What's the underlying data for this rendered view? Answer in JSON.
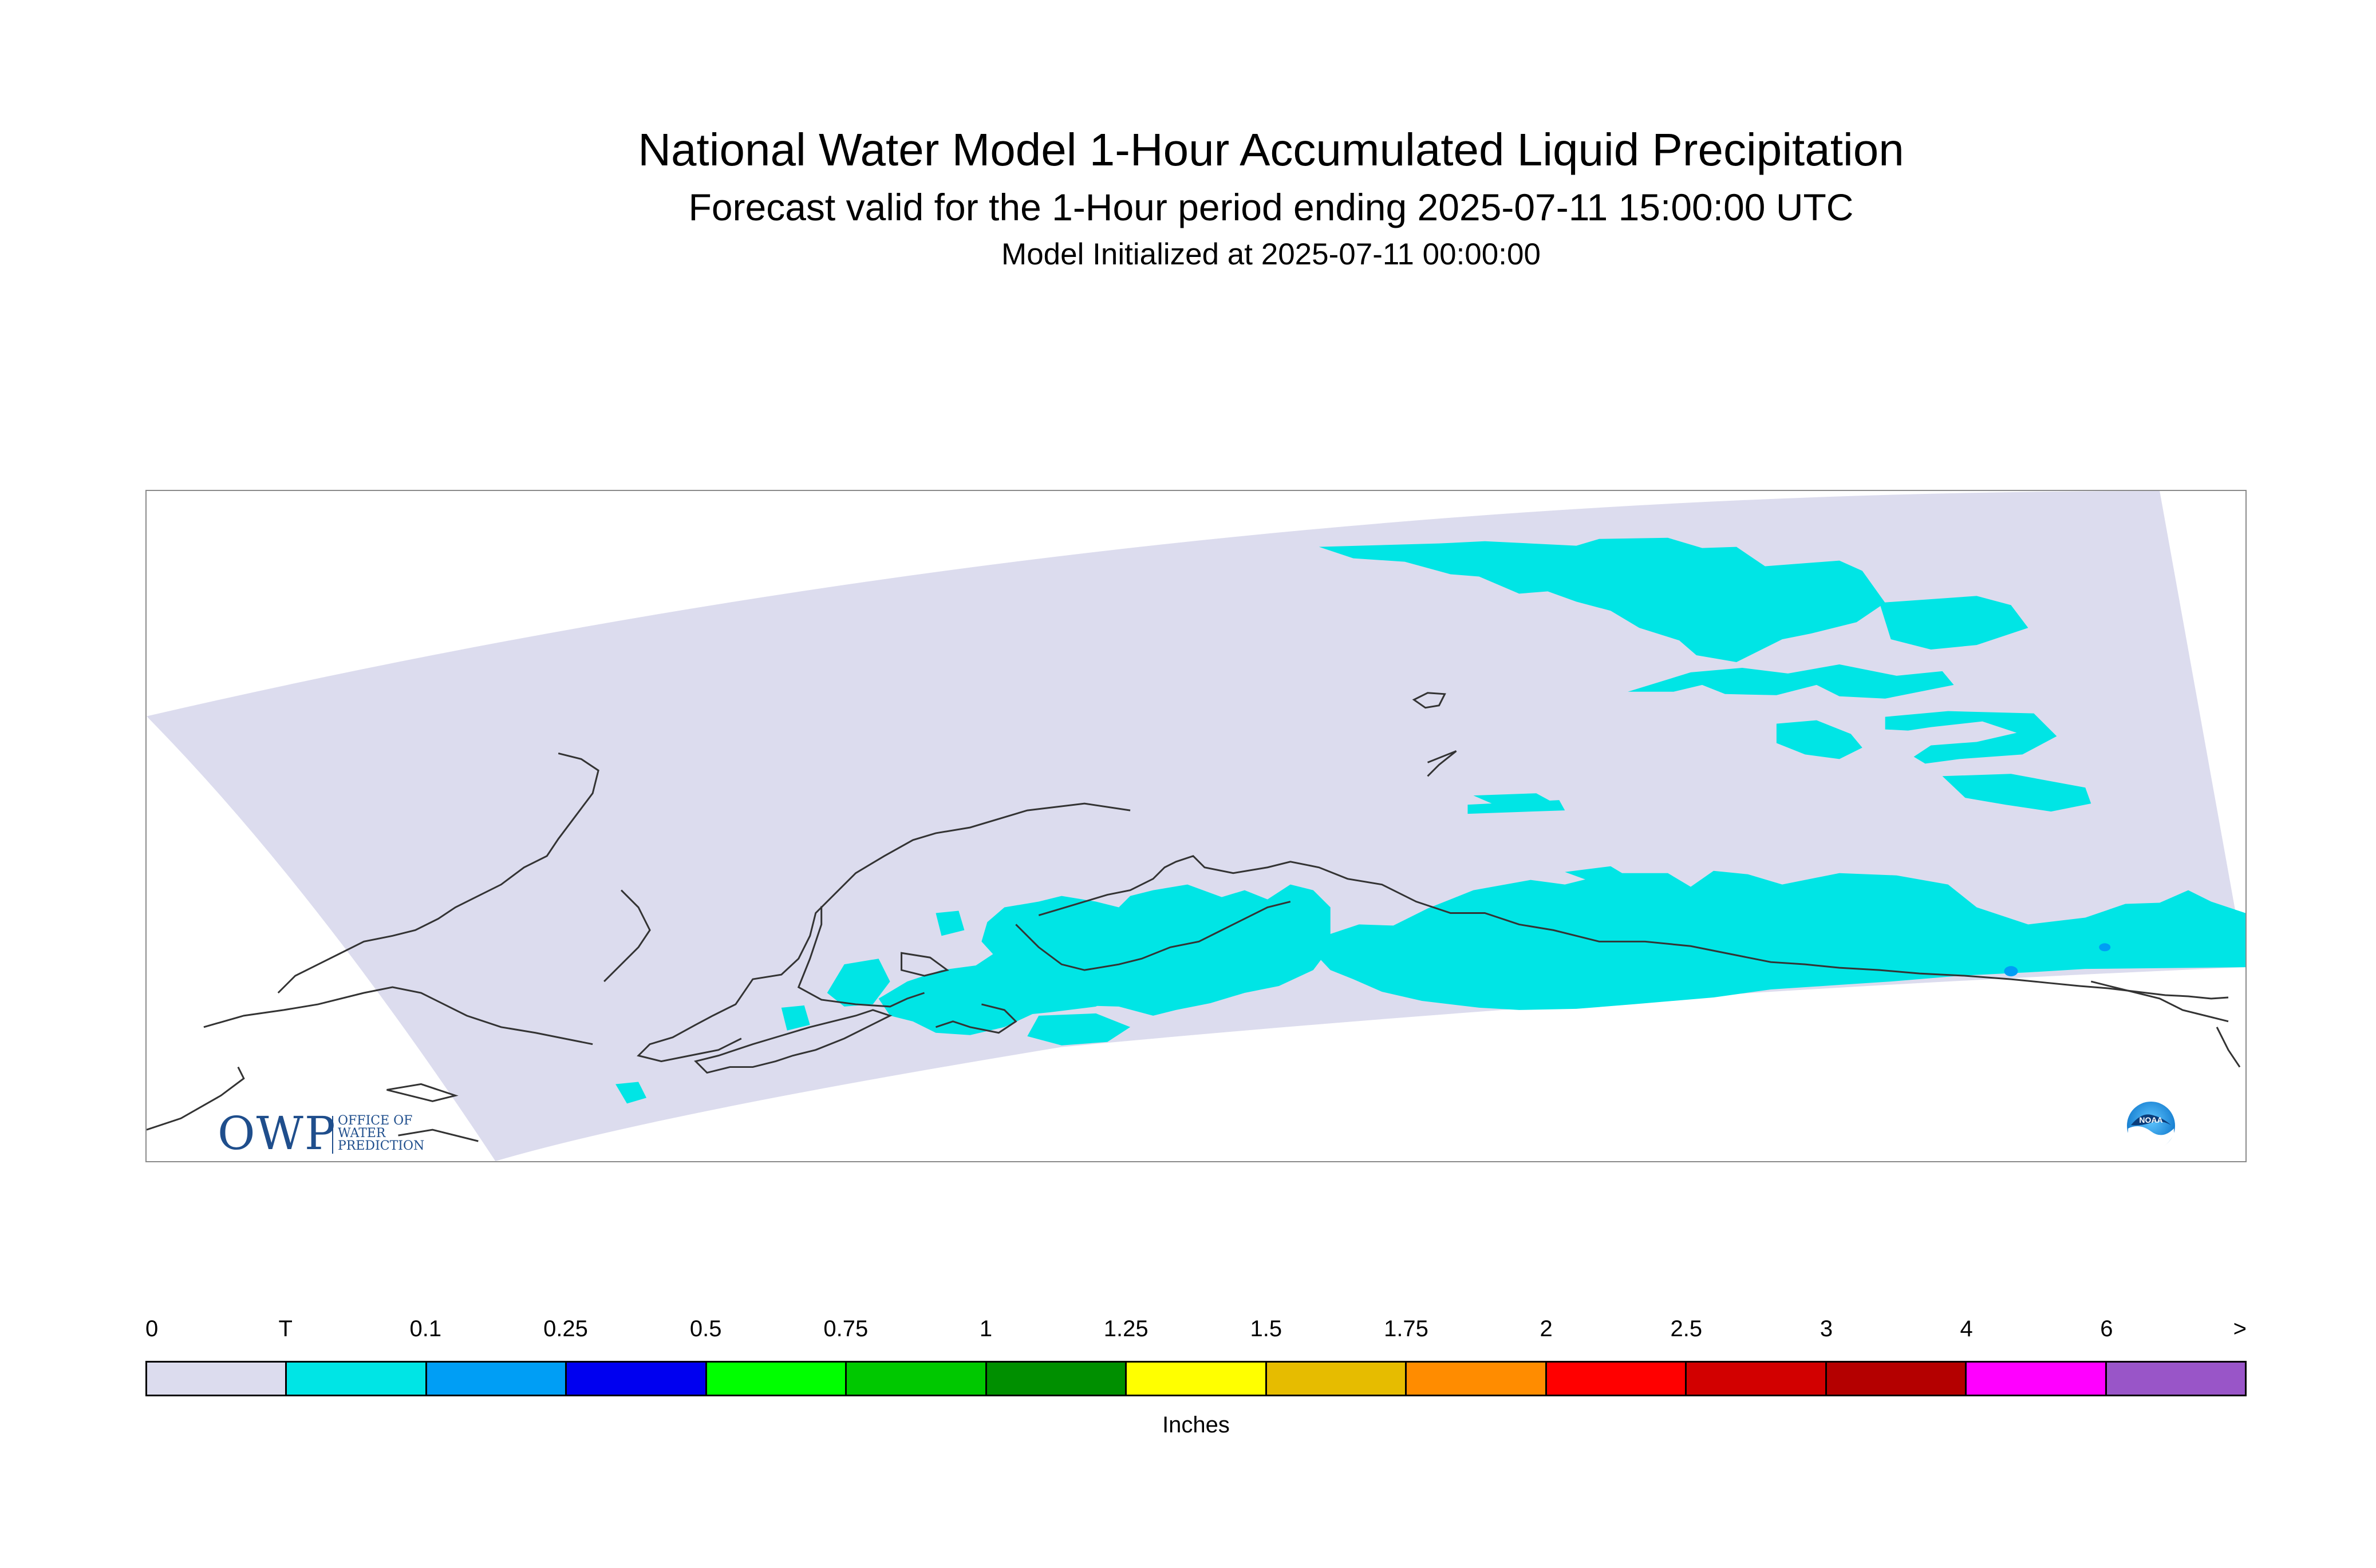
{
  "header": {
    "title": "National Water Model 1-Hour Accumulated Liquid Precipitation",
    "subtitle": "Forecast valid for the 1-Hour period ending 2025-07-11 15:00:00 UTC",
    "initialized": "Model Initialized at 2025-07-11 00:00:00"
  },
  "map": {
    "domain_fill_color": "#dcdcee",
    "precip_fill_color": "#00e5e5",
    "heavier_precip_color": "#009ef5",
    "coastline_color": "#333333",
    "frame_color": "#8a8a8a"
  },
  "logos": {
    "owp": {
      "letters": "OWP",
      "line1": "OFFICE OF",
      "line2": "WATER",
      "line3": "PREDICTION",
      "color": "#1f4e8c"
    },
    "noaa": {
      "text": "NOAA",
      "icon": "noaa-logo-icon"
    }
  },
  "legend": {
    "unit": "Inches",
    "tick_labels": [
      "0",
      "T",
      "0.1",
      "0.25",
      "0.5",
      "0.75",
      "1",
      "1.25",
      "1.5",
      "1.75",
      "2",
      "2.5",
      "3",
      "4",
      "6",
      ">"
    ],
    "colors": [
      "#dcdcee",
      "#00e5e5",
      "#009ef5",
      "#0000f0",
      "#00ff00",
      "#00c800",
      "#008f00",
      "#ffff00",
      "#e6bc00",
      "#ff8c00",
      "#ff0000",
      "#d20000",
      "#b40000",
      "#ff00ff",
      "#9955c8"
    ]
  }
}
